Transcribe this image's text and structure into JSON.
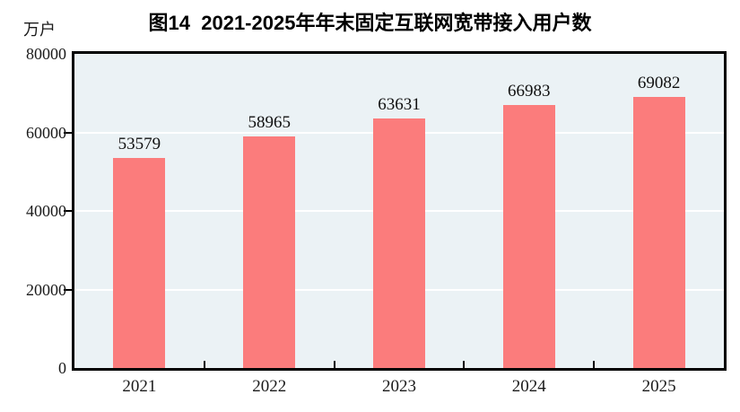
{
  "figure": {
    "title": "图14  2021-2025年年末固定互联网宽带接入用户数",
    "y_unit_label": "万户"
  },
  "chart_data": {
    "type": "bar",
    "title": "图14  2021-2025年年末固定互联网宽带接入用户数",
    "categories": [
      "2021",
      "2022",
      "2023",
      "2024",
      "2025"
    ],
    "values": [
      53579,
      58965,
      63631,
      66983,
      69082
    ],
    "value_labels": [
      "53579",
      "58965",
      "63631",
      "66983",
      "69082"
    ],
    "xlabel": "",
    "ylabel": "万户",
    "ylim": [
      0,
      80000
    ],
    "yticks": [
      0,
      20000,
      40000,
      60000,
      80000
    ],
    "ytick_labels": [
      "0",
      "20000",
      "40000",
      "60000",
      "80000"
    ],
    "grid": true,
    "legend": false,
    "colors": {
      "bar_fill": "#FB7C7C",
      "plot_background": "#EBF2F5",
      "gridline": "#FFFFFF",
      "axis": "#000000",
      "text": "#1A1A1A",
      "title": "#000000"
    }
  }
}
